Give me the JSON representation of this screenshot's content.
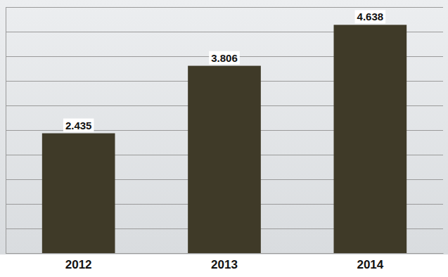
{
  "chart_data": {
    "type": "bar",
    "categories": [
      "2012",
      "2013",
      "2014"
    ],
    "values": [
      2.435,
      3.806,
      4.638
    ],
    "color": "#3f3a28",
    "ylim": [
      0,
      5
    ],
    "yticks": [
      0,
      0.5,
      1,
      1.5,
      2,
      2.5,
      3,
      3.5,
      4,
      4.5,
      5
    ],
    "grid": true,
    "data_labels": true,
    "tick_labels": "x"
  }
}
